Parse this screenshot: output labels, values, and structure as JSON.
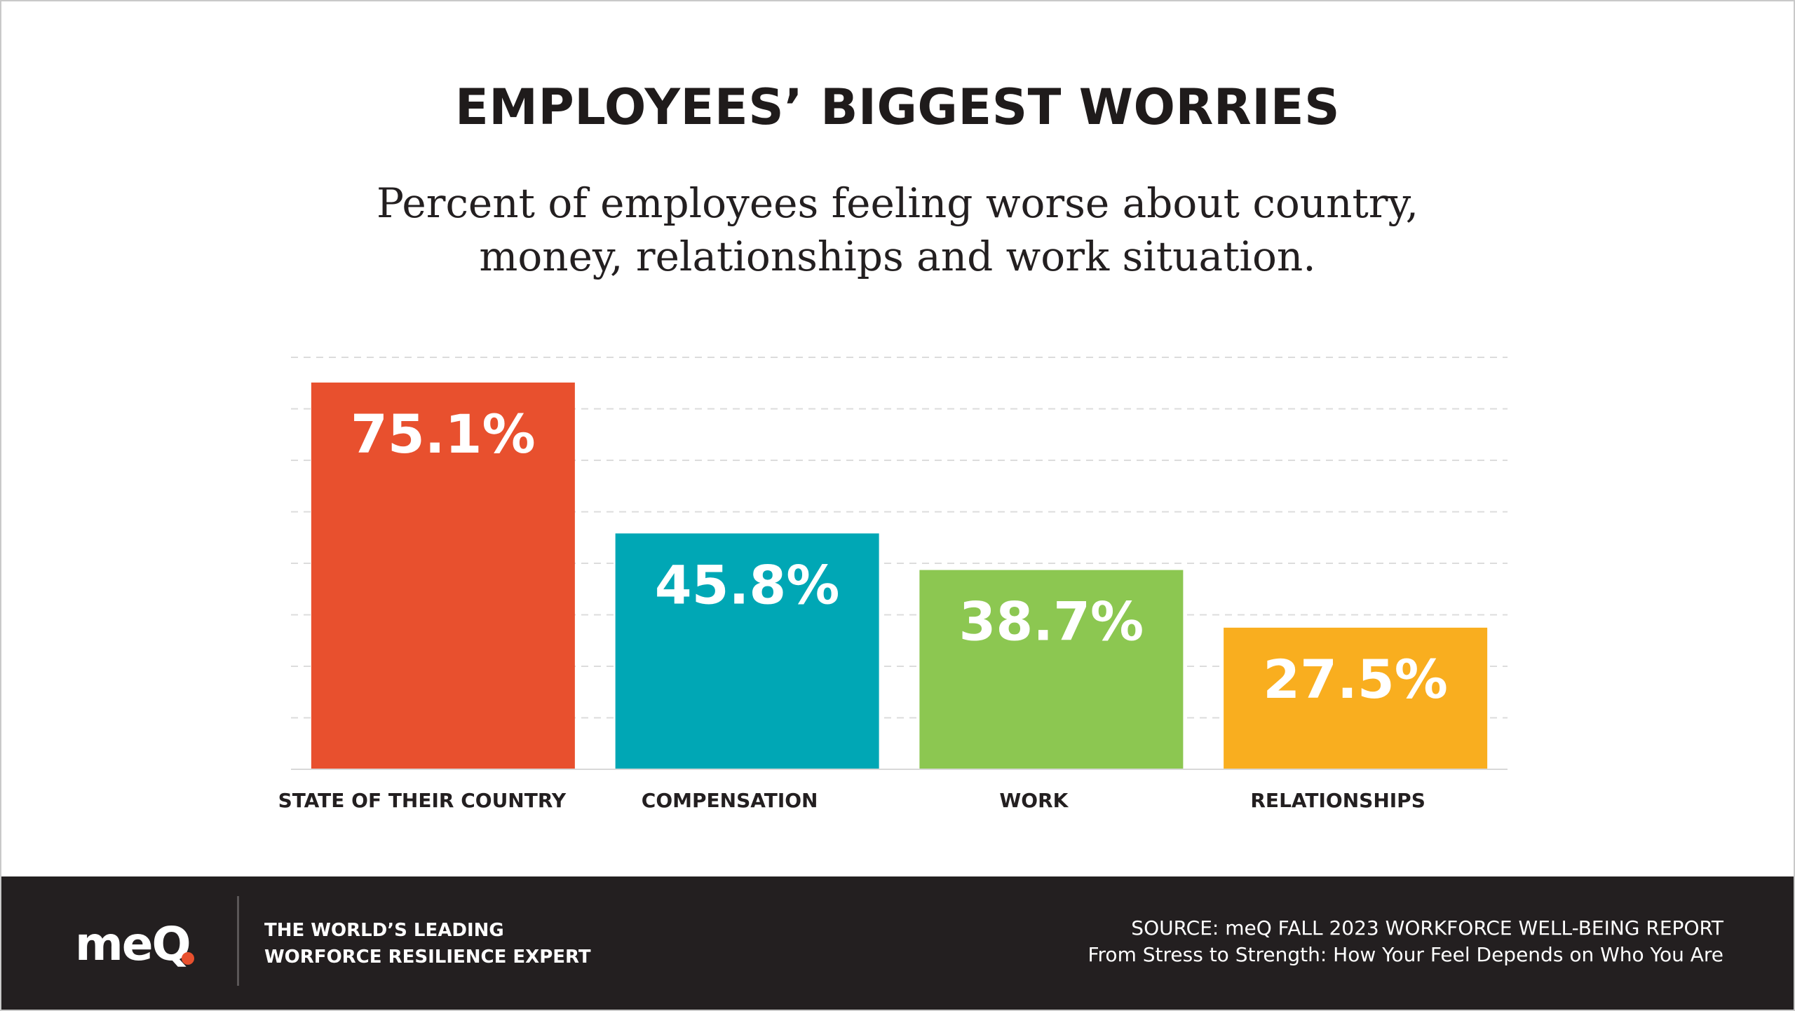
{
  "title": "EMPLOYEES’ BIGGEST WORRIES",
  "subtitle": {
    "line1": "Percent of employees feeling worse about country,",
    "line2": "money, relationships and work situation."
  },
  "chart_data": {
    "type": "bar",
    "title": "EMPLOYEES’ BIGGEST WORRIES",
    "categories": [
      "STATE OF THEIR COUNTRY",
      "COMPENSATION",
      "WORK",
      "RELATIONSHIPS"
    ],
    "values": [
      75.1,
      45.8,
      38.7,
      27.5
    ],
    "data_labels": [
      "75.1%",
      "45.8%",
      "38.7%",
      "27.5%"
    ],
    "colors": [
      "#e8502e",
      "#00a7b5",
      "#8cc751",
      "#f9ae1f"
    ],
    "ylim": [
      0,
      80
    ],
    "gridlines": [
      10,
      20,
      30,
      40,
      50,
      60,
      70,
      80
    ],
    "grid": true,
    "xlabel": "",
    "ylabel": ""
  },
  "footer": {
    "logo_text": "meQ",
    "tagline_line1": "THE WORLD’S LEADING",
    "tagline_line2": "WORFORCE RESILIENCE EXPERT",
    "source_line1": "SOURCE: meQ FALL 2023 WORKFORCE WELL-BEING REPORT",
    "source_line2": "From Stress to Strength: How Your Feel Depends on Who You Are",
    "background_color": "#231f20",
    "accent_color": "#e8502e"
  }
}
